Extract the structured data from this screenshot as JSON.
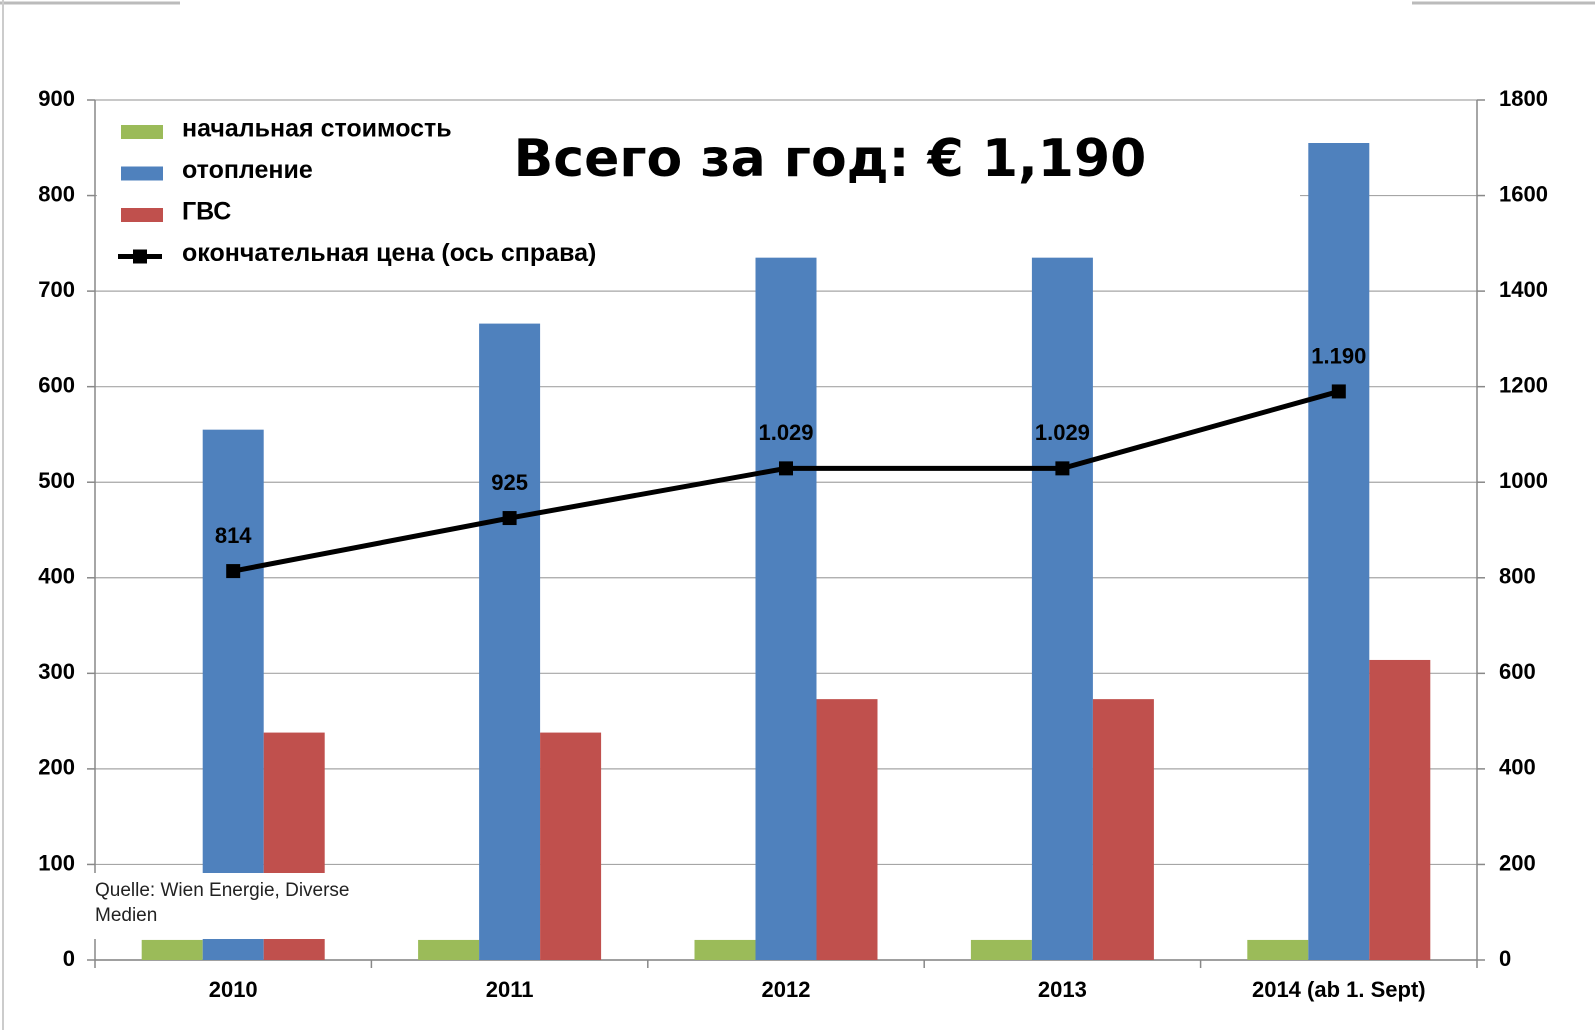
{
  "chart_data": {
    "type": "bar",
    "title": "Всего за год: € 1,190",
    "annotations": [
      "Quelle: Wien Energie, Diverse Medien"
    ],
    "categories": [
      "2010",
      "2011",
      "2012",
      "2013",
      "2014 (ab 1. Sept)"
    ],
    "series": [
      {
        "name": "начальная стоимость",
        "color": "#9bbb59",
        "values": [
          21,
          21,
          21,
          21,
          21
        ]
      },
      {
        "name": "отопление",
        "color": "#4f81bd",
        "values": [
          555,
          666,
          735,
          735,
          855
        ]
      },
      {
        "name": "ГВС",
        "color": "#c0504d",
        "values": [
          238,
          238,
          273,
          273,
          314
        ]
      },
      {
        "name": "окончательная цена (ось справа)",
        "color": "#000000",
        "type": "line",
        "axis": "y2",
        "values": [
          814,
          925,
          1029,
          1029,
          1190
        ],
        "value_labels": [
          "814",
          "925",
          "1.029",
          "1.029",
          "1.190"
        ]
      }
    ],
    "ylim": [
      0,
      900
    ],
    "yticks": [
      0,
      100,
      200,
      300,
      400,
      500,
      600,
      700,
      800,
      900
    ],
    "y2lim": [
      0,
      1800
    ],
    "y2ticks": [
      0,
      200,
      400,
      600,
      800,
      1000,
      1200,
      1400,
      1600,
      1800
    ],
    "grid": true,
    "legend": "top-left"
  }
}
